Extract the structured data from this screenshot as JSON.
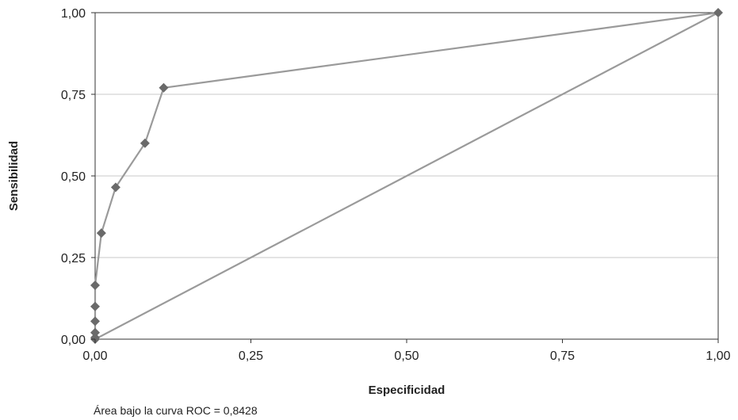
{
  "chart_data": {
    "type": "line",
    "xlabel": "Especificidad",
    "ylabel": "Sensibilidad",
    "xlim": [
      0,
      1
    ],
    "ylim": [
      0,
      1
    ],
    "x_ticks": [
      "0,00",
      "0,25",
      "0,50",
      "0,75",
      "1,00"
    ],
    "y_ticks": [
      "0,00",
      "0,25",
      "0,50",
      "0,75",
      "1,00"
    ],
    "grid": "horizontal",
    "series": [
      {
        "name": "",
        "color": "#9a9a9a",
        "marker_color": "#6a6a6a",
        "marker": "diamond",
        "x": [
          0,
          0,
          0,
          0,
          0,
          0,
          0.01,
          0.033,
          0.08,
          0.11,
          1.0
        ],
        "y": [
          0,
          0.005,
          0.02,
          0.055,
          0.1,
          0.165,
          0.325,
          0.465,
          0.6,
          0.77,
          1.0
        ]
      },
      {
        "name": "",
        "color": "#9a9a9a",
        "marker": "none",
        "x": [
          0,
          1
        ],
        "y": [
          0,
          1
        ]
      }
    ],
    "annotation": "Área bajo la curva ROC = 0,8428"
  }
}
